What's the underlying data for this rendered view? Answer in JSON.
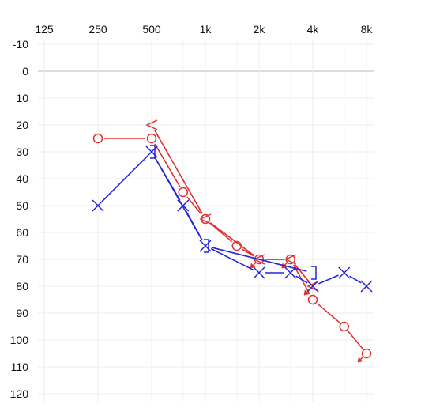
{
  "chart_data": {
    "type": "line",
    "title": "",
    "xlabel": "",
    "ylabel": "",
    "x_scale": "log",
    "y_inverted": true,
    "xlim": [
      125,
      8000
    ],
    "ylim": [
      -10,
      120
    ],
    "grid": true,
    "x_ticks": [
      {
        "value": 125,
        "label": "125"
      },
      {
        "value": 250,
        "label": "250"
      },
      {
        "value": 500,
        "label": "500"
      },
      {
        "value": 1000,
        "label": "1k"
      },
      {
        "value": 2000,
        "label": "2k"
      },
      {
        "value": 4000,
        "label": "4k"
      },
      {
        "value": 8000,
        "label": "8k"
      }
    ],
    "x_minor_ticks": [
      750,
      1500,
      3000,
      6000
    ],
    "y_ticks": [
      -10,
      0,
      10,
      20,
      30,
      40,
      50,
      60,
      70,
      80,
      90,
      100,
      110,
      120
    ],
    "series": [
      {
        "color": "#e03030",
        "symbol": "circle",
        "points": [
          {
            "x": 250,
            "y": 25
          },
          {
            "x": 500,
            "y": 25
          },
          {
            "x": 750,
            "y": 45
          },
          {
            "x": 1000,
            "y": 55
          },
          {
            "x": 1500,
            "y": 65
          },
          {
            "x": 2000,
            "y": 70
          },
          {
            "x": 3000,
            "y": 70
          },
          {
            "x": 4000,
            "y": 85
          },
          {
            "x": 6000,
            "y": 95
          },
          {
            "x": 8000,
            "y": 105,
            "no_response": true
          }
        ]
      },
      {
        "color": "#e03030",
        "symbol": "bracket-left",
        "points": [
          {
            "x": 500,
            "y": 20
          },
          {
            "x": 1000,
            "y": 55
          },
          {
            "x": 2000,
            "y": 70,
            "no_response": true
          },
          {
            "x": 3000,
            "y": 70,
            "no_response": true
          },
          {
            "x": 4000,
            "y": 80,
            "no_response": true
          }
        ]
      },
      {
        "color": "#2525d8",
        "symbol": "cross",
        "points": [
          {
            "x": 250,
            "y": 50
          },
          {
            "x": 500,
            "y": 30
          },
          {
            "x": 750,
            "y": 50
          },
          {
            "x": 1000,
            "y": 65
          },
          {
            "x": 2000,
            "y": 75
          },
          {
            "x": 3000,
            "y": 75
          },
          {
            "x": 4000,
            "y": 80
          },
          {
            "x": 6000,
            "y": 75
          },
          {
            "x": 8000,
            "y": 80
          }
        ]
      },
      {
        "color": "#2525d8",
        "symbol": "bracket-right",
        "points": [
          {
            "x": 500,
            "y": 30
          },
          {
            "x": 1000,
            "y": 65
          },
          {
            "x": 4000,
            "y": 75
          }
        ]
      }
    ]
  }
}
